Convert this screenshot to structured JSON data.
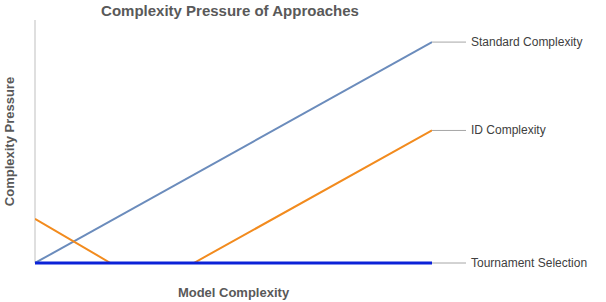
{
  "chart_data": {
    "type": "line",
    "title": "Complexity Pressure of Approaches",
    "x_label": "Model Complexity",
    "y_label": "Complexity Pressure",
    "xlim": [
      0,
      10
    ],
    "ylim": [
      0,
      11
    ],
    "tick_labels": false,
    "grid": false,
    "series": [
      {
        "name": "Standard Complexity",
        "color": "#6b8cbc",
        "x": [
          0,
          10
        ],
        "values": [
          0,
          10
        ]
      },
      {
        "name": "ID Complexity",
        "color": "#f28b1e",
        "x": [
          0,
          1.9,
          4,
          10
        ],
        "values": [
          2,
          0,
          0,
          6
        ]
      },
      {
        "name": "Tournament Selection",
        "color": "#0b22d8",
        "x": [
          0,
          10
        ],
        "values": [
          0,
          0
        ]
      }
    ]
  }
}
